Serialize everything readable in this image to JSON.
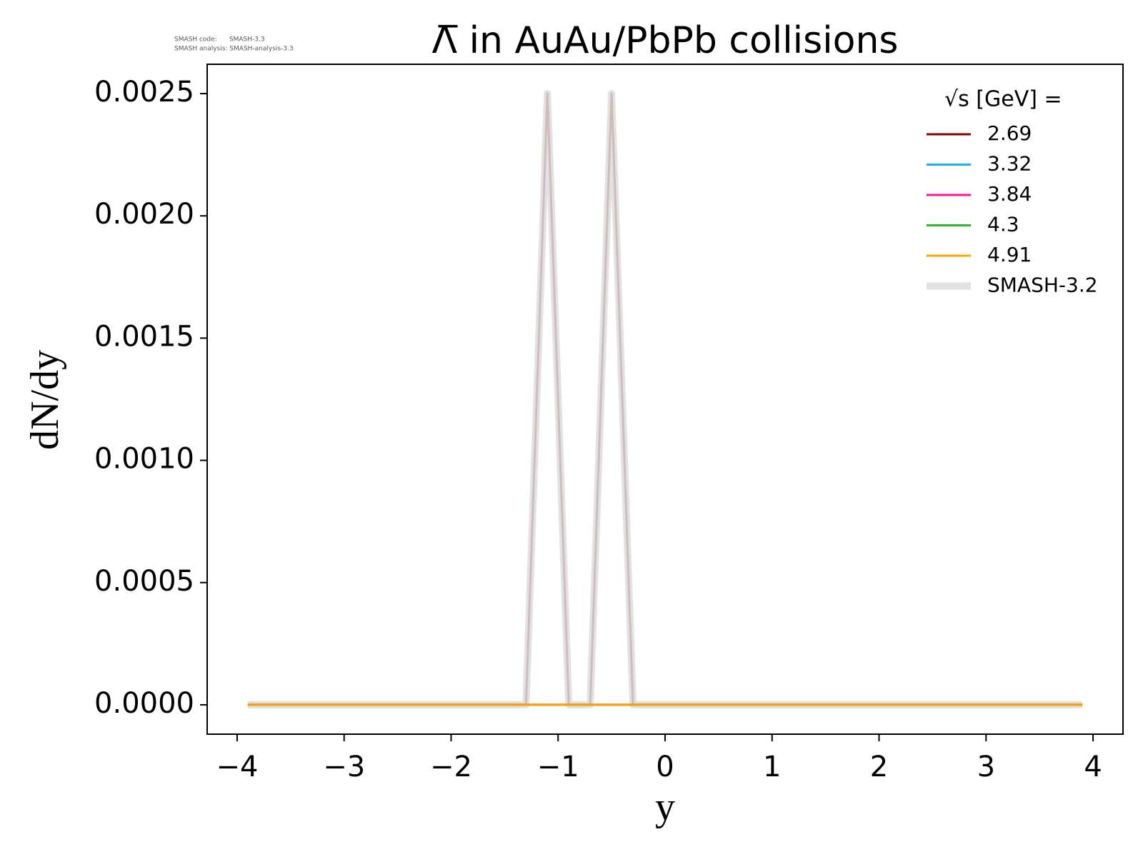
{
  "chart_data": {
    "type": "line",
    "title": "Λ̅ in AuAu/PbPb collisions",
    "annotations": [
      "SMASH code:      SMASH-3.3",
      "SMASH analysis: SMASH-analysis-3.3"
    ],
    "x_label": "y",
    "y_label": "dN/dy",
    "legend_title": "√s  [GeV] =",
    "legend": "upper right",
    "x": [
      -3.9,
      -3.7,
      -3.5,
      -3.3,
      -3.1,
      -2.9,
      -2.7,
      -2.5,
      -2.3,
      -2.1,
      -1.9,
      -1.7,
      -1.5,
      -1.3,
      -1.1,
      -0.9,
      -0.7,
      -0.5,
      -0.3,
      -0.1,
      0.1,
      0.3,
      0.5,
      0.7,
      0.9,
      1.1,
      1.3,
      1.5,
      1.7,
      1.9,
      2.1,
      2.3,
      2.5,
      2.7,
      2.9,
      3.1,
      3.3,
      3.5,
      3.7,
      3.9
    ],
    "series": [
      {
        "name": "2.69",
        "color": "#8b0000",
        "values": [
          0,
          0,
          0,
          0,
          0,
          0,
          0,
          0,
          0,
          0,
          0,
          0,
          0,
          0,
          0.0025,
          0,
          0,
          0.0025,
          0,
          0,
          0,
          0,
          0,
          0,
          0,
          0,
          0,
          0,
          0,
          0,
          0,
          0,
          0,
          0,
          0,
          0,
          0,
          0,
          0,
          0
        ]
      },
      {
        "name": "SMASH-3.2",
        "color": "#dddddd",
        "values": [
          0,
          0,
          0,
          0,
          0,
          0,
          0,
          0,
          0,
          0,
          0,
          0,
          0,
          0,
          0.0025,
          0,
          0,
          0.0025,
          0,
          0,
          0,
          0,
          0,
          0,
          0,
          0,
          0,
          0,
          0,
          0,
          0,
          0,
          0,
          0,
          0,
          0,
          0,
          0,
          0,
          0
        ]
      },
      {
        "name": "3.32",
        "color": "#1ab2e8",
        "values": [
          0,
          0,
          0,
          0,
          0,
          0,
          0,
          0,
          0,
          0,
          0,
          0,
          0,
          0,
          0,
          0,
          0,
          0,
          0,
          0,
          0,
          0,
          0,
          0,
          0,
          0,
          0,
          0,
          0,
          0,
          0,
          0,
          0,
          0,
          0,
          0,
          0,
          0,
          0,
          0
        ]
      },
      {
        "name": "3.84",
        "color": "#ff1493",
        "values": [
          0,
          0,
          0,
          0,
          0,
          0,
          0,
          0,
          0,
          0,
          0,
          0,
          0,
          0,
          0,
          0,
          0,
          0,
          0,
          0,
          0,
          0,
          0,
          0,
          0,
          0,
          0,
          0,
          0,
          0,
          0,
          0,
          0,
          0,
          0,
          0,
          0,
          0,
          0,
          0
        ]
      },
      {
        "name": "4.3",
        "color": "#2db82d",
        "values": [
          0,
          0,
          0,
          0,
          0,
          0,
          0,
          0,
          0,
          0,
          0,
          0,
          0,
          0,
          0,
          0,
          0,
          0,
          0,
          0,
          0,
          0,
          0,
          0,
          0,
          0,
          0,
          0,
          0,
          0,
          0,
          0,
          0,
          0,
          0,
          0,
          0,
          0,
          0,
          0
        ]
      },
      {
        "name": "4.91",
        "color": "#ffa500",
        "values": [
          0,
          0,
          0,
          0,
          0,
          0,
          0,
          0,
          0,
          0,
          0,
          0,
          0,
          0,
          0,
          0,
          0,
          0,
          0,
          0,
          0,
          0,
          0,
          0,
          0,
          0,
          0,
          0,
          0,
          0,
          0,
          0,
          0,
          0,
          0,
          0,
          0,
          0,
          0,
          0
        ]
      }
    ],
    "legend_order": [
      0,
      2,
      3,
      4,
      5,
      1
    ],
    "xlim": [
      -4.28,
      4.28
    ],
    "xticks": [
      {
        "value": -4,
        "label": "−4"
      },
      {
        "value": -3,
        "label": "−3"
      },
      {
        "value": -2,
        "label": "−2"
      },
      {
        "value": -1,
        "label": "−1"
      },
      0,
      1,
      2,
      3,
      4
    ],
    "ylim": [
      -0.00012,
      0.00262
    ],
    "yticks": [
      {
        "value": 0,
        "label": "0.0000"
      },
      {
        "value": 0.0005,
        "label": "0.0005"
      },
      {
        "value": 0.001,
        "label": "0.0010"
      },
      {
        "value": 0.0015,
        "label": "0.0015"
      },
      {
        "value": 0.002,
        "label": "0.0020"
      },
      {
        "value": 0.0025,
        "label": "0.0025"
      }
    ],
    "grid": false
  }
}
